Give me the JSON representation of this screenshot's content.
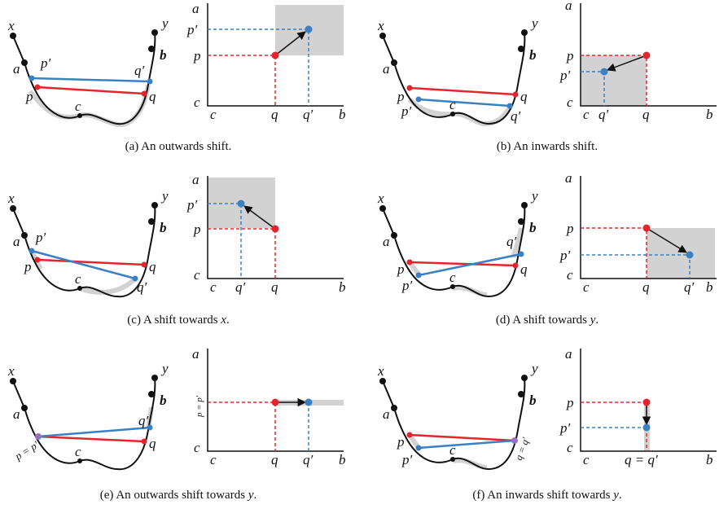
{
  "colors": {
    "red": "#e3262b",
    "blue": "#3a80c4",
    "purple": "#9b6fc4",
    "shade": "#d2d2d2",
    "black": "#111111"
  },
  "labels": {
    "x": "x",
    "y": "y",
    "a": "a",
    "b": "b",
    "c": "c",
    "p": "p",
    "q": "q",
    "p_prime": "p′",
    "q_prime": "q′",
    "p_eq": "p = p′",
    "q_eq": "q = q′"
  },
  "captions": [
    {
      "prefix": "(a) An outwards shift.",
      "var": ""
    },
    {
      "prefix": "(b) An inwards shift.",
      "var": ""
    },
    {
      "prefix": "(c) A shift towards ",
      "var": "x",
      "suffix": "."
    },
    {
      "prefix": "(d) A shift towards ",
      "var": "y",
      "suffix": "."
    },
    {
      "prefix": "(e) An outwards shift towards ",
      "var": "y",
      "suffix": "."
    },
    {
      "prefix": "(f) An inwards shift towards ",
      "var": "y",
      "suffix": "."
    }
  ]
}
